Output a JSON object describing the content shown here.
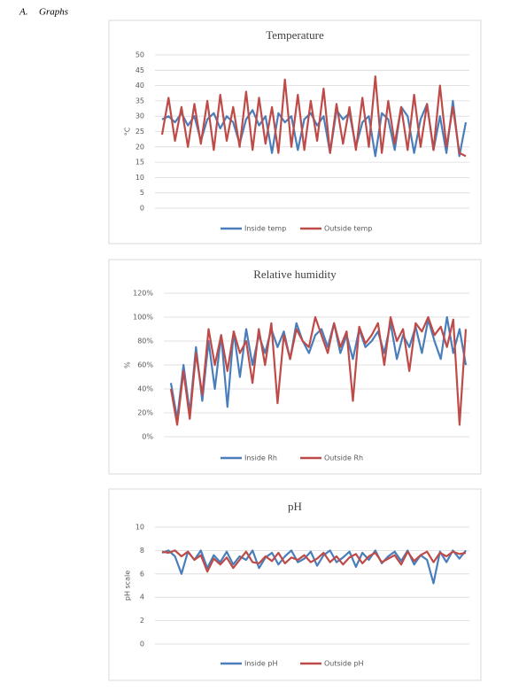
{
  "heading": {
    "number": "A.",
    "text": "Graphs"
  },
  "chart_data": [
    {
      "type": "line",
      "title": "Temperature",
      "y_label": "°C",
      "ylim": [
        0,
        50
      ],
      "yticks": [
        0,
        5,
        10,
        15,
        20,
        25,
        30,
        35,
        40,
        45,
        50
      ],
      "grid": true,
      "legend": "bottom",
      "series": [
        {
          "name": "Inside temp",
          "color": "#4a7ebb",
          "values": [
            29,
            30,
            28,
            31,
            27,
            30,
            22,
            29,
            31,
            26,
            30,
            28,
            21,
            29,
            32,
            27,
            30,
            18,
            31,
            28,
            30,
            19,
            29,
            31,
            27,
            30,
            18,
            32,
            29,
            31,
            20,
            28,
            30,
            17,
            31,
            29,
            19,
            33,
            30,
            18,
            29,
            34,
            19,
            30,
            18,
            35,
            17,
            28
          ]
        },
        {
          "name": "Outside temp",
          "color": "#be4b48",
          "values": [
            24,
            36,
            22,
            33,
            20,
            34,
            21,
            35,
            19,
            37,
            22,
            33,
            20,
            38,
            19,
            36,
            21,
            33,
            18,
            42,
            20,
            37,
            19,
            35,
            22,
            39,
            18,
            34,
            21,
            33,
            19,
            36,
            20,
            43,
            18,
            35,
            21,
            33,
            19,
            37,
            20,
            34,
            19,
            40,
            20,
            33,
            18,
            17
          ]
        }
      ]
    },
    {
      "type": "line",
      "title": "Relative humidity",
      "y_label": "%",
      "ylim": [
        0,
        120
      ],
      "yticks": [
        {
          "value": 0,
          "label": "0%"
        },
        {
          "value": 20,
          "label": "20%"
        },
        {
          "value": 40,
          "label": "40%"
        },
        {
          "value": 60,
          "label": "60%"
        },
        {
          "value": 80,
          "label": "80%"
        },
        {
          "value": 100,
          "label": "100%"
        },
        {
          "value": 120,
          "label": "120%"
        }
      ],
      "grid": true,
      "legend": "bottom",
      "series": [
        {
          "name": "Inside Rh",
          "color": "#4a7ebb",
          "values": [
            45,
            15,
            60,
            20,
            75,
            30,
            80,
            40,
            85,
            25,
            88,
            50,
            90,
            60,
            85,
            70,
            90,
            75,
            88,
            65,
            95,
            80,
            70,
            85,
            90,
            75,
            95,
            70,
            85,
            65,
            90,
            75,
            80,
            88,
            70,
            95,
            65,
            85,
            75,
            92,
            70,
            98,
            80,
            65,
            100,
            70,
            90,
            60
          ]
        },
        {
          "name": "Outside Rh",
          "color": "#be4b48",
          "values": [
            40,
            10,
            55,
            15,
            70,
            35,
            90,
            60,
            85,
            55,
            88,
            70,
            80,
            45,
            90,
            60,
            95,
            28,
            85,
            65,
            90,
            80,
            75,
            100,
            85,
            70,
            95,
            75,
            88,
            30,
            92,
            78,
            85,
            95,
            60,
            100,
            80,
            90,
            55,
            95,
            88,
            100,
            85,
            92,
            75,
            98,
            10,
            90
          ]
        }
      ]
    },
    {
      "type": "line",
      "title": "pH",
      "y_label": "pH scale",
      "ylim": [
        0,
        10
      ],
      "yticks": [
        0,
        2,
        4,
        6,
        8,
        10
      ],
      "grid": true,
      "legend": "bottom",
      "series": [
        {
          "name": "Inside pH",
          "color": "#4a7ebb",
          "values": [
            7.8,
            8,
            7.5,
            6,
            7.9,
            7.2,
            8,
            6.5,
            7.6,
            7,
            7.9,
            6.8,
            7.5,
            7.2,
            8,
            6.5,
            7.4,
            7.8,
            6.8,
            7.5,
            8,
            7,
            7.3,
            7.9,
            6.7,
            7.6,
            8,
            7,
            7.4,
            7.9,
            6.6,
            7.8,
            7.2,
            8,
            6.9,
            7.5,
            7.9,
            7.1,
            8,
            6.8,
            7.6,
            7.2,
            5.2,
            7.9,
            7,
            8,
            7.3,
            8
          ]
        },
        {
          "name": "Outside pH",
          "color": "#be4b48",
          "values": [
            7.9,
            7.8,
            8,
            7.5,
            7.9,
            7.2,
            7.6,
            6.2,
            7.3,
            6.8,
            7.4,
            6.5,
            7.2,
            7.9,
            7,
            6.9,
            7.5,
            7.1,
            7.8,
            6.9,
            7.4,
            7.2,
            7.6,
            7,
            7.3,
            7.8,
            7,
            7.5,
            6.8,
            7.4,
            7.7,
            6.9,
            7.5,
            7.8,
            7,
            7.3,
            7.6,
            6.8,
            7.9,
            7.1,
            7.6,
            7.9,
            7,
            7.8,
            7.5,
            7.9,
            7.7,
            7.8
          ]
        }
      ]
    }
  ]
}
